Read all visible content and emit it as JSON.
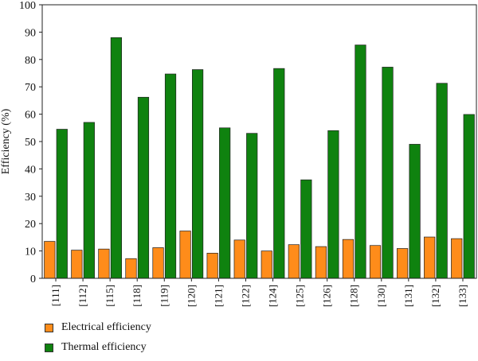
{
  "chart_data": {
    "type": "bar",
    "categories": [
      "[111]",
      "[112]",
      "[115]",
      "[118]",
      "[119]",
      "[120]",
      "[121]",
      "[122]",
      "[124]",
      "[125]",
      "[126]",
      "[128]",
      "[130]",
      "[131]",
      "[132]",
      "[133]"
    ],
    "series": [
      {
        "name": "Electrical efficiency",
        "color": "#ff8c1a",
        "values": [
          13.5,
          10.3,
          10.7,
          7.2,
          11.2,
          17.3,
          9.2,
          14.0,
          10.0,
          12.3,
          11.6,
          14.2,
          12.0,
          10.9,
          15.1,
          14.5
        ]
      },
      {
        "name": "Thermal efficiency",
        "color": "#0f820f",
        "values": [
          54.5,
          57.0,
          88.0,
          66.2,
          74.7,
          76.3,
          55.0,
          53.0,
          76.7,
          36.0,
          54.0,
          85.3,
          77.2,
          49.0,
          71.3,
          59.9
        ]
      }
    ],
    "ylabel": "Efficiency (%)",
    "xlabel": "",
    "ylim": [
      0,
      100
    ],
    "yticks": [
      0,
      10,
      20,
      30,
      40,
      50,
      60,
      70,
      80,
      90,
      100
    ],
    "grid": false,
    "legend_position": "bottom-left"
  }
}
